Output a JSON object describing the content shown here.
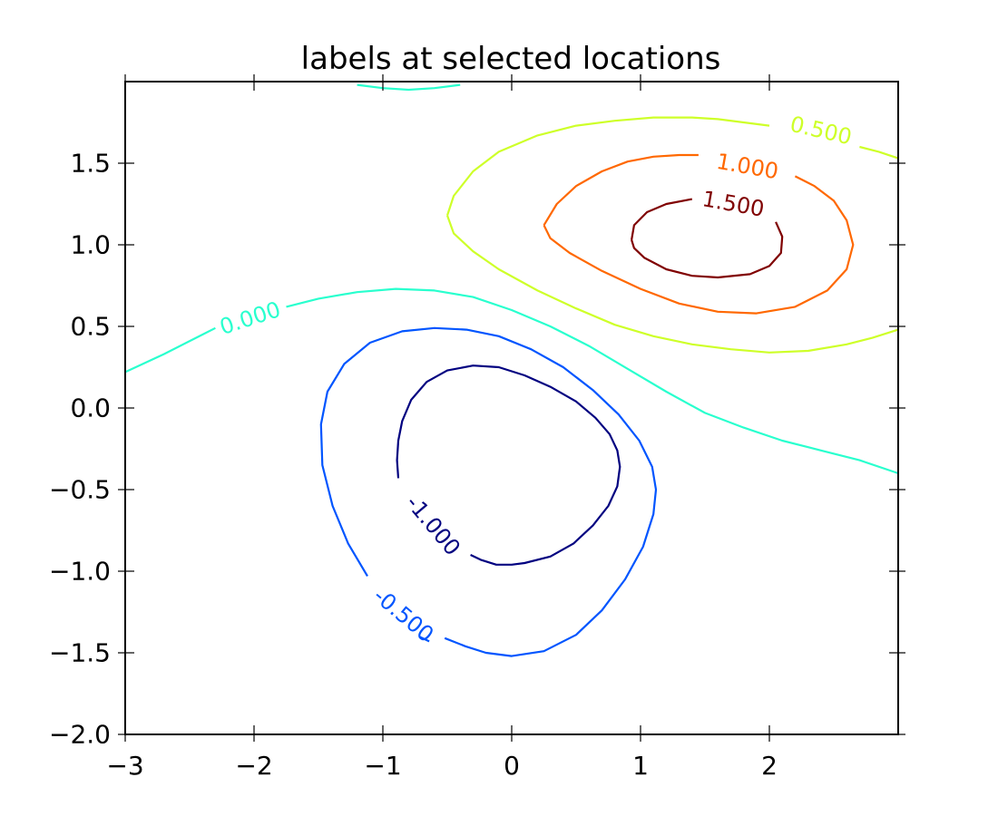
{
  "chart_data": {
    "type": "contour",
    "title": "labels at selected locations",
    "xlabel": "",
    "ylabel": "",
    "xlim": [
      -3.0,
      3.0
    ],
    "ylim": [
      -2.0,
      2.0
    ],
    "xticks": [
      -3,
      -2,
      -1,
      0,
      1,
      2
    ],
    "xtick_labels": [
      "−3",
      "−2",
      "−1",
      "0",
      "1",
      "2"
    ],
    "yticks": [
      -2.0,
      -1.5,
      -1.0,
      -0.5,
      0.0,
      0.5,
      1.0,
      1.5
    ],
    "ytick_labels": [
      "−2.0",
      "−1.5",
      "−1.0",
      "−0.5",
      "0.0",
      "0.5",
      "1.0",
      "1.5"
    ],
    "grid": false,
    "legend": "none",
    "levels": [
      {
        "level": -1.0,
        "label": "-1.000",
        "color": "#000080",
        "paths": [
          [
            [
              -0.88,
              -0.43
            ],
            [
              -0.89,
              -0.32
            ],
            [
              -0.88,
              -0.2
            ],
            [
              -0.85,
              -0.08
            ],
            [
              -0.78,
              0.05
            ],
            [
              -0.66,
              0.16
            ],
            [
              -0.5,
              0.23
            ],
            [
              -0.3,
              0.26
            ],
            [
              -0.1,
              0.25
            ],
            [
              0.1,
              0.2
            ],
            [
              0.3,
              0.13
            ],
            [
              0.5,
              0.04
            ],
            [
              0.65,
              -0.06
            ],
            [
              0.76,
              -0.16
            ],
            [
              0.82,
              -0.26
            ],
            [
              0.84,
              -0.36
            ],
            [
              0.82,
              -0.48
            ],
            [
              0.75,
              -0.6
            ],
            [
              0.63,
              -0.72
            ],
            [
              0.48,
              -0.83
            ],
            [
              0.3,
              -0.91
            ],
            [
              0.1,
              -0.95
            ],
            [
              0.0,
              -0.96
            ],
            [
              -0.12,
              -0.96
            ],
            [
              -0.24,
              -0.93
            ],
            [
              -0.32,
              -0.9
            ]
          ]
        ],
        "label_pos": [
          -0.61,
          -0.72
        ],
        "label_angle": 50
      },
      {
        "level": -0.5,
        "label": "-0.500",
        "color": "#0055ff",
        "paths": [
          [
            [
              -1.12,
              -1.03
            ],
            [
              -1.27,
              -0.83
            ],
            [
              -1.39,
              -0.6
            ],
            [
              -1.47,
              -0.35
            ],
            [
              -1.48,
              -0.1
            ],
            [
              -1.43,
              0.1
            ],
            [
              -1.3,
              0.27
            ],
            [
              -1.1,
              0.4
            ],
            [
              -0.85,
              0.47
            ],
            [
              -0.6,
              0.49
            ],
            [
              -0.35,
              0.48
            ],
            [
              -0.1,
              0.44
            ],
            [
              0.15,
              0.36
            ],
            [
              0.4,
              0.25
            ],
            [
              0.63,
              0.11
            ],
            [
              0.83,
              -0.04
            ],
            [
              0.99,
              -0.2
            ],
            [
              1.09,
              -0.36
            ],
            [
              1.12,
              -0.5
            ],
            [
              1.1,
              -0.65
            ],
            [
              1.02,
              -0.85
            ],
            [
              0.88,
              -1.05
            ],
            [
              0.7,
              -1.24
            ],
            [
              0.5,
              -1.39
            ],
            [
              0.25,
              -1.49
            ],
            [
              0.0,
              -1.52
            ],
            [
              -0.2,
              -1.5
            ],
            [
              -0.36,
              -1.46
            ],
            [
              -0.52,
              -1.41
            ]
          ],
          [
            [
              -0.64,
              -1.43
            ],
            [
              -0.72,
              -1.4
            ]
          ]
        ],
        "label_pos": [
          -0.84,
          -1.27
        ],
        "label_angle": 40
      },
      {
        "level": 0.0,
        "label": "0.000",
        "color": "#29ffce",
        "paths": [
          [
            [
              -3.0,
              0.22
            ],
            [
              -2.7,
              0.33
            ],
            [
              -2.4,
              0.45
            ],
            [
              -2.3,
              0.49
            ]
          ],
          [
            [
              -1.75,
              0.62
            ],
            [
              -1.5,
              0.67
            ],
            [
              -1.2,
              0.71
            ],
            [
              -0.9,
              0.73
            ],
            [
              -0.6,
              0.72
            ],
            [
              -0.3,
              0.68
            ],
            [
              0.0,
              0.6
            ],
            [
              0.3,
              0.5
            ],
            [
              0.6,
              0.38
            ],
            [
              0.9,
              0.24
            ],
            [
              1.2,
              0.1
            ],
            [
              1.5,
              -0.03
            ],
            [
              1.8,
              -0.12
            ],
            [
              2.1,
              -0.2
            ],
            [
              2.4,
              -0.26
            ],
            [
              2.7,
              -0.32
            ],
            [
              3.0,
              -0.4
            ]
          ],
          [
            [
              -1.2,
              1.98
            ],
            [
              -1.0,
              1.96
            ],
            [
              -0.8,
              1.95
            ],
            [
              -0.6,
              1.96
            ],
            [
              -0.4,
              1.98
            ]
          ]
        ],
        "label_pos": [
          -2.03,
          0.55
        ],
        "label_angle": -18
      },
      {
        "level": 0.5,
        "label": "0.500",
        "color": "#ceff29",
        "paths": [
          [
            [
              -0.5,
              1.18
            ],
            [
              -0.45,
              1.3
            ],
            [
              -0.3,
              1.45
            ],
            [
              -0.1,
              1.57
            ],
            [
              0.2,
              1.67
            ],
            [
              0.5,
              1.73
            ],
            [
              0.8,
              1.76
            ],
            [
              1.1,
              1.78
            ],
            [
              1.4,
              1.78
            ],
            [
              1.6,
              1.77
            ],
            [
              1.8,
              1.75
            ],
            [
              2.0,
              1.73
            ]
          ],
          [
            [
              2.7,
              1.6
            ],
            [
              2.85,
              1.57
            ],
            [
              3.0,
              1.53
            ]
          ],
          [
            [
              -0.5,
              1.18
            ],
            [
              -0.45,
              1.07
            ],
            [
              -0.3,
              0.96
            ],
            [
              -0.1,
              0.85
            ],
            [
              0.2,
              0.72
            ],
            [
              0.5,
              0.61
            ],
            [
              0.8,
              0.51
            ],
            [
              1.1,
              0.44
            ],
            [
              1.4,
              0.39
            ],
            [
              1.7,
              0.36
            ],
            [
              2.0,
              0.34
            ],
            [
              2.3,
              0.35
            ],
            [
              2.6,
              0.39
            ],
            [
              2.8,
              0.43
            ],
            [
              3.0,
              0.48
            ]
          ]
        ],
        "label_pos": [
          2.4,
          1.7
        ],
        "label_angle": 13
      },
      {
        "level": 1.0,
        "label": "1.000",
        "color": "#ff6800",
        "paths": [
          [
            [
              0.25,
              1.12
            ],
            [
              0.35,
              1.25
            ],
            [
              0.5,
              1.36
            ],
            [
              0.7,
              1.45
            ],
            [
              0.9,
              1.51
            ],
            [
              1.1,
              1.54
            ],
            [
              1.3,
              1.55
            ],
            [
              1.45,
              1.55
            ]
          ],
          [
            [
              2.2,
              1.42
            ],
            [
              2.35,
              1.36
            ],
            [
              2.5,
              1.27
            ],
            [
              2.6,
              1.15
            ],
            [
              2.65,
              1.0
            ],
            [
              2.6,
              0.85
            ],
            [
              2.45,
              0.72
            ],
            [
              2.2,
              0.62
            ],
            [
              1.9,
              0.58
            ],
            [
              1.6,
              0.59
            ],
            [
              1.3,
              0.64
            ],
            [
              1.0,
              0.73
            ],
            [
              0.7,
              0.84
            ],
            [
              0.45,
              0.95
            ],
            [
              0.3,
              1.04
            ],
            [
              0.25,
              1.12
            ]
          ]
        ],
        "label_pos": [
          1.83,
          1.48
        ],
        "label_angle": 10
      },
      {
        "level": 1.5,
        "label": "1.500",
        "color": "#800000",
        "paths": [
          [
            [
              0.93,
              1.03
            ],
            [
              0.95,
              1.12
            ],
            [
              1.05,
              1.2
            ],
            [
              1.2,
              1.25
            ],
            [
              1.4,
              1.28
            ]
          ],
          [
            [
              2.05,
              1.14
            ],
            [
              2.1,
              1.05
            ],
            [
              2.09,
              0.95
            ],
            [
              2.0,
              0.87
            ],
            [
              1.85,
              0.82
            ],
            [
              1.6,
              0.8
            ],
            [
              1.4,
              0.81
            ],
            [
              1.2,
              0.85
            ],
            [
              1.03,
              0.92
            ],
            [
              0.95,
              0.98
            ],
            [
              0.93,
              1.03
            ]
          ]
        ],
        "label_pos": [
          1.72,
          1.25
        ],
        "label_angle": 10
      }
    ]
  }
}
